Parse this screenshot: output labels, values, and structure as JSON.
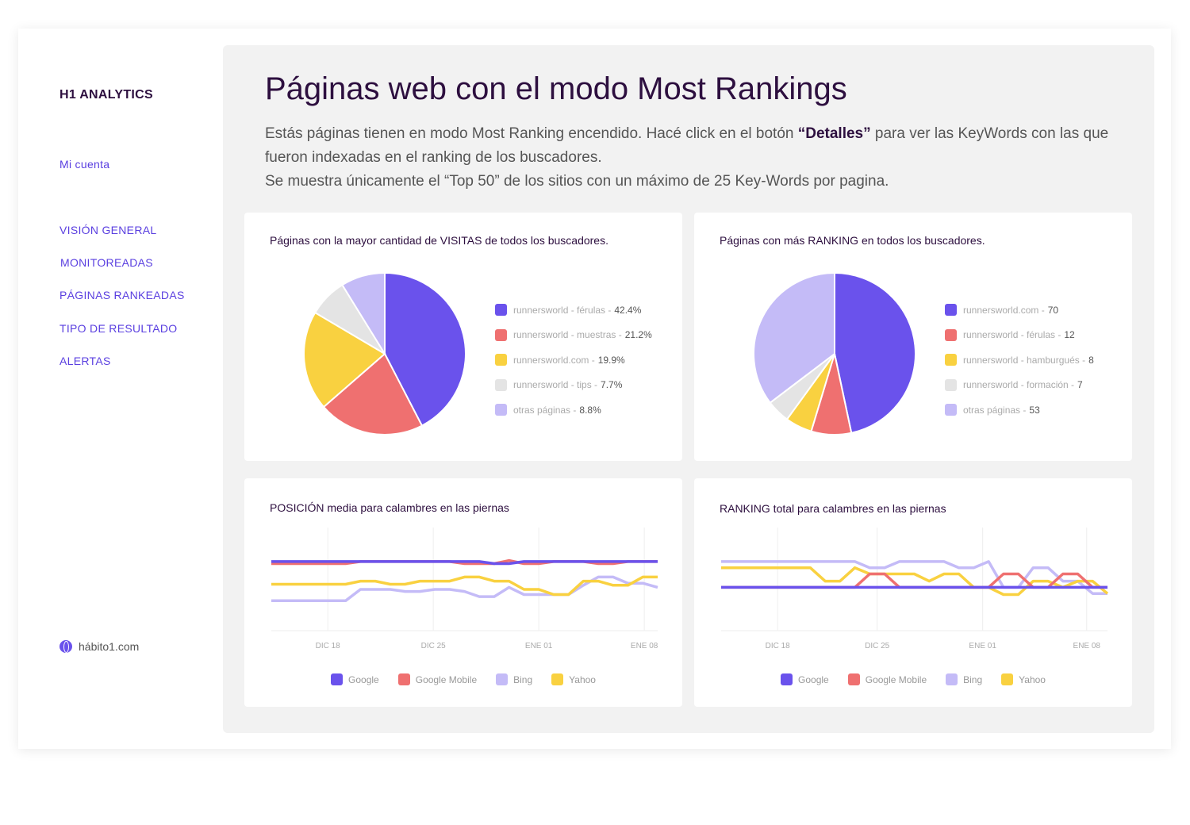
{
  "sidebar": {
    "brand": "H1 ANALYTICS",
    "account": "Mi cuenta",
    "items": [
      "VISIÓN GENERAL",
      "MONITOREADAS",
      "PÁGINAS RANKEADAS",
      "TIPO DE RESULTADO",
      "ALERTAS"
    ],
    "site": "hábito1.com"
  },
  "header": {
    "title": "Páginas web con el modo Most Rankings",
    "desc_1": "Estás páginas tienen en modo Most Ranking encendido. Hacé click en el botón ",
    "desc_bold": "“Detalles”",
    "desc_2": " para ver las KeyWords con las que fueron indexadas en el ranking de los buscadores.",
    "desc_3": "Se muestra únicamente el “Top 50” de los sitios con un máximo de 25 Key-Words por pagina."
  },
  "colors": [
    "#6a52ec",
    "#ef7070",
    "#f9d140",
    "#e4e4e4",
    "#c4bbf7"
  ],
  "chart_data": [
    {
      "type": "pie",
      "title": "Páginas con la mayor cantidad de VISITAS de todos los buscadores.",
      "labels": [
        "runnersworld - férulas",
        "runnersworld - muestras",
        "runnersworld.com",
        "runnersworld - tips",
        "otras páginas"
      ],
      "display": [
        "42.4%",
        "21.2%",
        "19.9%",
        "7.7%",
        "8.8%"
      ],
      "values": [
        42.4,
        21.2,
        19.9,
        7.7,
        8.8
      ]
    },
    {
      "type": "pie",
      "title": "Páginas con más RANKING en todos los buscadores.",
      "labels": [
        "runnersworld.com",
        "runnersworld - férulas",
        "runnersworld - hamburgués",
        "runnersworld - formación",
        "otras páginas"
      ],
      "display": [
        "70",
        "12",
        "8",
        "7",
        "53"
      ],
      "values": [
        70,
        12,
        8,
        7,
        53
      ]
    },
    {
      "type": "line",
      "title": "POSICIÓN media para calambres en las piernas",
      "ticks": [
        "DIC 18",
        "DIC 25",
        "ENE 01",
        "ENE 08"
      ],
      "tick_index": [
        3.8,
        10.9,
        18,
        25.1
      ],
      "ylim": [
        0,
        100
      ],
      "series": [
        {
          "name": "Google",
          "values": [
            67,
            67,
            67,
            67,
            67,
            67,
            67,
            67,
            67,
            67,
            67,
            67,
            67,
            67,
            67,
            65,
            65,
            67,
            67,
            67,
            67,
            67,
            67,
            67,
            67,
            67,
            67
          ]
        },
        {
          "name": "Google Mobile",
          "values": [
            65,
            65,
            65,
            65,
            65,
            65,
            67,
            67,
            67,
            67,
            67,
            67,
            67,
            65,
            65,
            65,
            68,
            65,
            65,
            67,
            67,
            67,
            65,
            65,
            67,
            67,
            67
          ]
        },
        {
          "name": "Bing",
          "values": [
            29,
            29,
            29,
            29,
            29,
            29,
            40,
            40,
            40,
            38,
            38,
            40,
            40,
            38,
            33,
            33,
            42,
            35,
            35,
            35,
            35,
            44,
            52,
            52,
            46,
            46,
            42
          ]
        },
        {
          "name": "Yahoo",
          "values": [
            45,
            45,
            45,
            45,
            45,
            45,
            48,
            48,
            45,
            45,
            48,
            48,
            48,
            52,
            52,
            48,
            48,
            40,
            40,
            35,
            35,
            48,
            48,
            44,
            44,
            52,
            52
          ]
        }
      ]
    },
    {
      "type": "line",
      "title": "RANKING total para calambres en las piernas",
      "ticks": [
        "DIC 18",
        "DIC 25",
        "ENE 01",
        "ENE 08"
      ],
      "tick_index": [
        3.8,
        10.5,
        17.6,
        24.6
      ],
      "ylim": [
        0,
        100
      ],
      "series": [
        {
          "name": "Google",
          "values": [
            42,
            42,
            42,
            42,
            42,
            42,
            42,
            42,
            42,
            42,
            42,
            42,
            42,
            42,
            42,
            42,
            42,
            42,
            42,
            42,
            42,
            42,
            42,
            42,
            42,
            42,
            42
          ]
        },
        {
          "name": "Google Mobile",
          "values": [
            42,
            42,
            42,
            42,
            42,
            42,
            42,
            42,
            42,
            42,
            55,
            55,
            42,
            42,
            42,
            42,
            42,
            42,
            42,
            55,
            55,
            42,
            42,
            55,
            55,
            42,
            42
          ]
        },
        {
          "name": "Bing",
          "values": [
            67,
            67,
            67,
            67,
            67,
            67,
            67,
            67,
            67,
            67,
            61,
            61,
            67,
            67,
            67,
            67,
            61,
            61,
            67,
            42,
            42,
            61,
            61,
            48,
            48,
            36,
            36
          ]
        },
        {
          "name": "Yahoo",
          "values": [
            61,
            61,
            61,
            61,
            61,
            61,
            61,
            48,
            48,
            61,
            55,
            55,
            55,
            55,
            48,
            55,
            55,
            42,
            42,
            35,
            35,
            48,
            48,
            42,
            48,
            48,
            36
          ]
        }
      ]
    }
  ]
}
